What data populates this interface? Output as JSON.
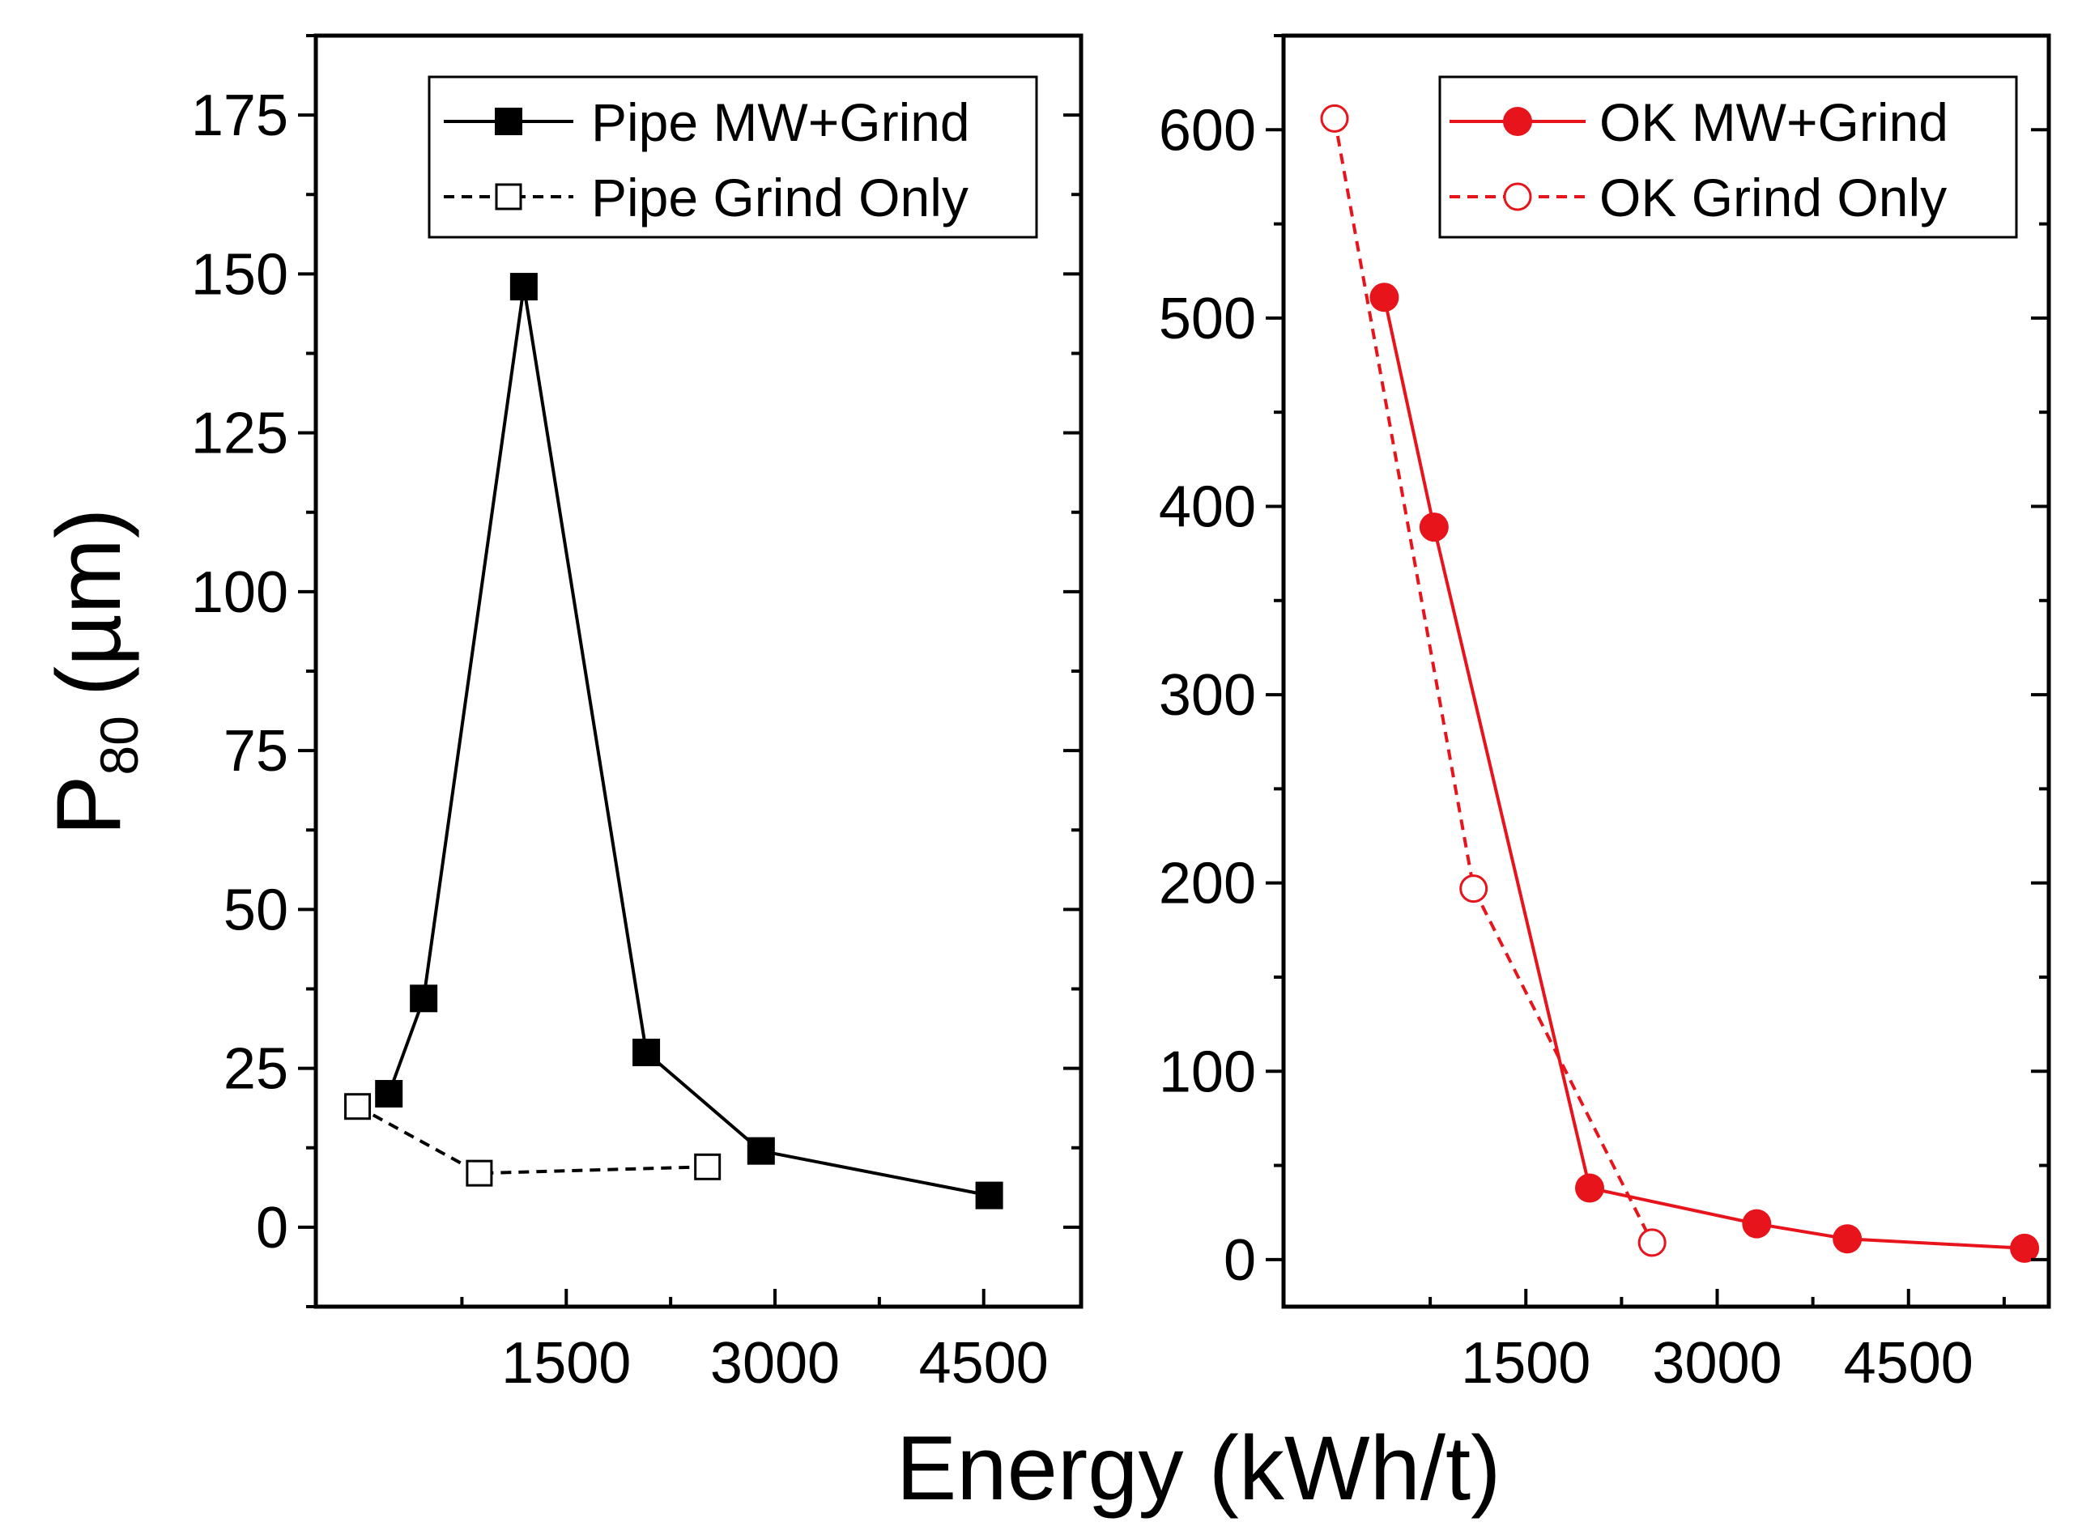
{
  "figure": {
    "xlabel": "Energy (kWh/t)",
    "ylabel_main": "P",
    "ylabel_sub": "80",
    "ylabel_unit": "(µm)"
  },
  "colors": {
    "black": "#000000",
    "red": "#e8141c"
  },
  "chart_data": [
    {
      "type": "line",
      "title": "",
      "xlabel": "Energy (kWh/t)",
      "ylabel": "P80 (µm)",
      "xlim": [
        -300,
        5200
      ],
      "ylim": [
        -12.5,
        187.5
      ],
      "xticks": [
        1500,
        3000,
        4500
      ],
      "xtick_labels": [
        "1500",
        "3000",
        "4500"
      ],
      "yticks": [
        0,
        25,
        50,
        75,
        100,
        125,
        150,
        175
      ],
      "ytick_labels": [
        "0",
        "25",
        "50",
        "75",
        "100",
        "125",
        "150",
        "175"
      ],
      "grid": false,
      "legend_position": "top-right",
      "series": [
        {
          "name": "Pipe MW+Grind",
          "color": "#000000",
          "style": "solid",
          "marker": "square-filled",
          "x": [
            225,
            475,
            1195,
            2075,
            2900,
            4540
          ],
          "y": [
            21,
            36,
            148,
            27.5,
            12,
            5
          ]
        },
        {
          "name": "Pipe Grind Only",
          "color": "#000000",
          "style": "dashed",
          "marker": "square-open",
          "x": [
            0,
            875,
            2515
          ],
          "y": [
            19,
            8.5,
            9.5
          ]
        }
      ]
    },
    {
      "type": "line",
      "title": "",
      "xlabel": "Energy (kWh/t)",
      "ylabel": "P80 (µm)",
      "xlim": [
        -400,
        5600
      ],
      "ylim": [
        -25,
        650
      ],
      "xticks": [
        1500,
        3000,
        4500
      ],
      "xtick_labels": [
        "1500",
        "3000",
        "4500"
      ],
      "yticks": [
        0,
        100,
        200,
        300,
        400,
        500,
        600
      ],
      "ytick_labels": [
        "0",
        "100",
        "200",
        "300",
        "400",
        "500",
        "600"
      ],
      "grid": false,
      "legend_position": "top-right",
      "series": [
        {
          "name": "OK MW+Grind",
          "color": "#e8141c",
          "style": "solid",
          "marker": "circle-filled",
          "x": [
            390,
            780,
            2000,
            3310,
            4020,
            5410
          ],
          "y": [
            511,
            389,
            38,
            19,
            11,
            6
          ]
        },
        {
          "name": "OK Grind Only",
          "color": "#e8141c",
          "style": "dashed",
          "marker": "circle-open",
          "x": [
            0,
            1090,
            2490
          ],
          "y": [
            606,
            197,
            9
          ]
        }
      ]
    }
  ]
}
